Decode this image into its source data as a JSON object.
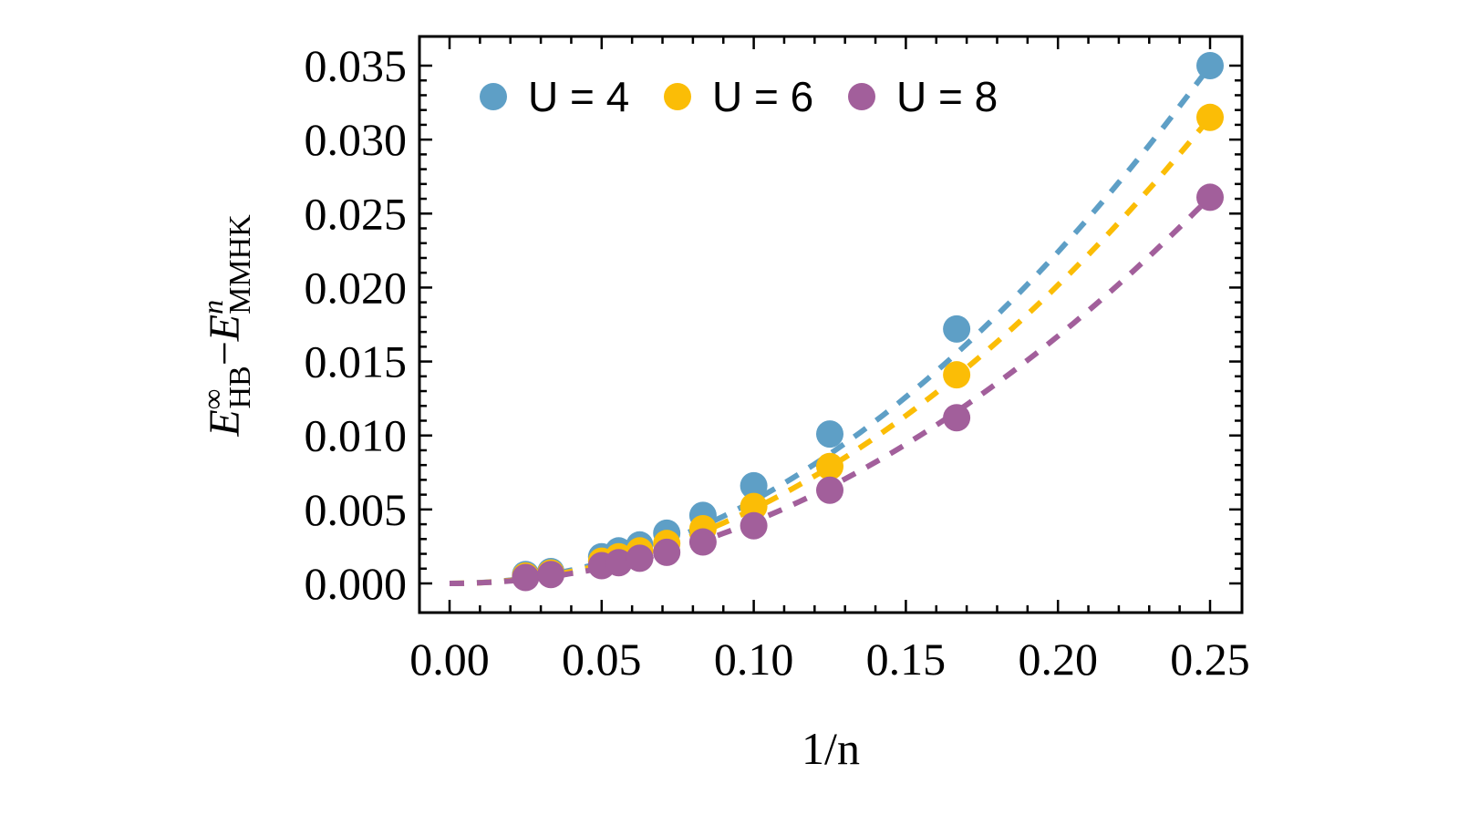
{
  "chart_data": {
    "type": "scatter",
    "title": "",
    "xlabel": "1/n",
    "ylabel": "E_HB^∞ − E_MMHK^n",
    "ylabel_parts": {
      "main1": "E",
      "sup1": "∞",
      "sub1": "HB",
      "minus": "−",
      "main2": "E",
      "sup2": "n",
      "sub2": "MMHK"
    },
    "xlim": [
      0,
      0.25
    ],
    "ylim": [
      0.0,
      0.035
    ],
    "x_ticks": [
      "0.00",
      "0.05",
      "0.10",
      "0.15",
      "0.20",
      "0.25"
    ],
    "x_tick_values": [
      0,
      0.05,
      0.1,
      0.15,
      0.2,
      0.25
    ],
    "y_ticks": [
      "0.000",
      "0.005",
      "0.010",
      "0.015",
      "0.020",
      "0.025",
      "0.030",
      "0.035"
    ],
    "y_tick_values": [
      0,
      0.005,
      0.01,
      0.015,
      0.02,
      0.025,
      0.03,
      0.035
    ],
    "grid": false,
    "legend_position": "top-left inside",
    "x": [
      0.025,
      0.0333,
      0.05,
      0.0556,
      0.0625,
      0.0714,
      0.0833,
      0.1,
      0.125,
      0.1667,
      0.25
    ],
    "series": [
      {
        "name": "U = 4",
        "color": "#5e9fc6",
        "values": [
          0.0006,
          0.0008,
          0.0018,
          0.0022,
          0.0026,
          0.0034,
          0.0046,
          0.0066,
          0.0101,
          0.0172,
          0.035
        ],
        "fit": {
          "type": "quadratic",
          "coef": 0.56,
          "style": "dashed"
        }
      },
      {
        "name": "U = 6",
        "color": "#fbbd06",
        "values": [
          0.0005,
          0.0007,
          0.0015,
          0.0018,
          0.0022,
          0.0027,
          0.0037,
          0.0052,
          0.0079,
          0.0141,
          0.0315
        ],
        "fit": {
          "type": "quadratic",
          "coef": 0.504,
          "style": "dashed"
        }
      },
      {
        "name": "U = 8",
        "color": "#a25f9b",
        "values": [
          0.0004,
          0.0006,
          0.0012,
          0.0014,
          0.0017,
          0.0021,
          0.0028,
          0.0039,
          0.0063,
          0.0112,
          0.0261
        ],
        "fit": {
          "type": "quadratic",
          "coef": 0.418,
          "style": "dashed"
        }
      }
    ]
  }
}
